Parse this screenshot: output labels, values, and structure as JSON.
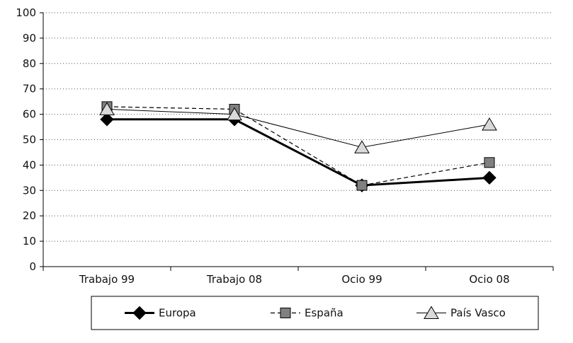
{
  "chart_data": {
    "type": "line",
    "categories": [
      "Trabajo 99",
      "Trabajo 08",
      "Ocio 99",
      "Ocio 08"
    ],
    "ylim": [
      0,
      100
    ],
    "yticks": [
      0,
      10,
      20,
      30,
      40,
      50,
      60,
      70,
      80,
      90,
      100
    ],
    "grid": "horizontal dotted",
    "legend_position": "bottom",
    "series": [
      {
        "name": "Europa",
        "values": [
          58,
          58,
          32,
          35
        ],
        "marker": "diamond",
        "line": "solid-thick",
        "color": "#000000"
      },
      {
        "name": "España",
        "values": [
          63,
          62,
          32,
          41
        ],
        "marker": "square",
        "line": "dashed",
        "color": "#808080"
      },
      {
        "name": "País Vasco",
        "values": [
          62,
          60,
          47,
          56
        ],
        "marker": "triangle",
        "line": "solid-thin",
        "color": "#d9d9d9"
      }
    ]
  }
}
